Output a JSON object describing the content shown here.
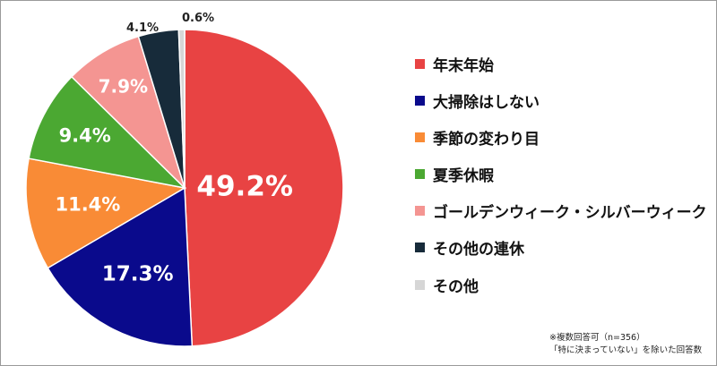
{
  "chart_data": {
    "type": "pie",
    "title": "",
    "start_angle_deg": 0,
    "direction": "clockwise",
    "slices": [
      {
        "label": "年末年始",
        "value": 49.2,
        "display": "49.2%",
        "color": "#e84343",
        "label_color": "#ffffff",
        "label_placement": "inside"
      },
      {
        "label": "大掃除はしない",
        "value": 17.3,
        "display": "17.3%",
        "color": "#0a0a8c",
        "label_color": "#ffffff",
        "label_placement": "inside"
      },
      {
        "label": "季節の変わり目",
        "value": 11.4,
        "display": "11.4%",
        "color": "#f98b36",
        "label_color": "#ffffff",
        "label_placement": "inside"
      },
      {
        "label": "夏季休暇",
        "value": 9.4,
        "display": "9.4%",
        "color": "#4ba832",
        "label_color": "#ffffff",
        "label_placement": "inside"
      },
      {
        "label": "ゴールデンウィーク・シルバーウィーク",
        "value": 7.9,
        "display": "7.9%",
        "color": "#f49592",
        "label_color": "#ffffff",
        "label_placement": "inside"
      },
      {
        "label": "その他の連休",
        "value": 4.1,
        "display": "4.1%",
        "color": "#172b3a",
        "label_color": "#222222",
        "label_placement": "outside"
      },
      {
        "label": "その他",
        "value": 0.6,
        "display": "0.6%",
        "color": "#d6d6d6",
        "label_color": "#222222",
        "label_placement": "outside"
      }
    ],
    "legend_position": "right"
  },
  "notes": {
    "line1": "※複数回答可（n=356）",
    "line2": "「特に決まっていない」を除いた回答数"
  }
}
